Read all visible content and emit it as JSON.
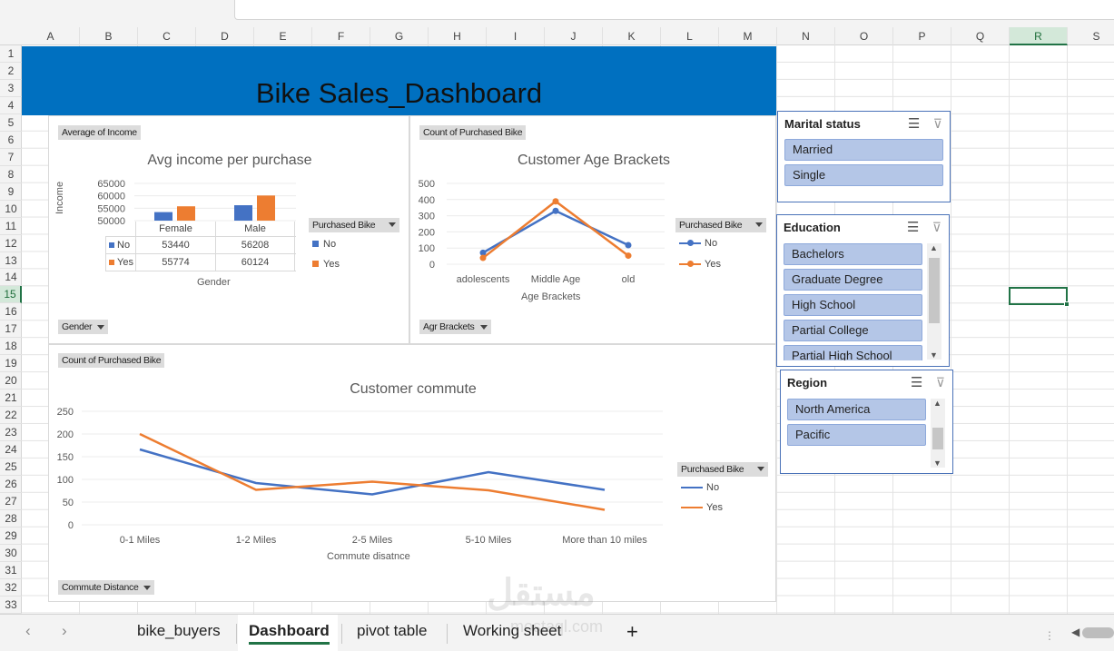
{
  "columns": [
    "A",
    "B",
    "C",
    "D",
    "E",
    "F",
    "G",
    "H",
    "I",
    "J",
    "K",
    "L",
    "M",
    "N",
    "O",
    "P",
    "Q",
    "R",
    "S"
  ],
  "rows": [
    "1",
    "2",
    "3",
    "4",
    "5",
    "6",
    "7",
    "8",
    "9",
    "10",
    "11",
    "12",
    "13",
    "14",
    "15",
    "16",
    "17",
    "18",
    "19",
    "20",
    "21",
    "22",
    "23",
    "24",
    "25",
    "26",
    "27",
    "28",
    "29",
    "30",
    "31",
    "32",
    "33"
  ],
  "selected_column": "R",
  "selected_row": "15",
  "dashboard_title": "Bike Sales_Dashboard",
  "chart1": {
    "field_value": "Average of Income",
    "field_axis": "Gender",
    "field_legend": "Purchased Bike",
    "title": "Avg income per purchase",
    "ylabel": "Income",
    "xlabel": "Gender",
    "ytick_labels": [
      "65000",
      "60000",
      "55000",
      "50000"
    ],
    "table_header": [
      "Female",
      "Male"
    ],
    "table_rows": [
      {
        "label": "No",
        "values": [
          "53440",
          "56208"
        ]
      },
      {
        "label": "Yes",
        "values": [
          "55774",
          "60124"
        ]
      }
    ],
    "legend": [
      "No",
      "Yes"
    ]
  },
  "chart2": {
    "field_value": "Count of Purchased Bike",
    "field_axis": "Agr Brackets",
    "field_legend": "Purchased Bike",
    "title": "Customer Age Brackets",
    "xlabel": "Age Brackets",
    "ytick_labels": [
      "500",
      "400",
      "300",
      "200",
      "100",
      "0"
    ],
    "legend": [
      "No",
      "Yes"
    ]
  },
  "chart3": {
    "field_value": "Count of Purchased Bike",
    "field_axis": "Commute Distance",
    "field_legend": "Purchased Bike",
    "title": "Customer commute",
    "xlabel": "Commute disatnce",
    "ytick_labels": [
      "250",
      "200",
      "150",
      "100",
      "50",
      "0"
    ],
    "legend": [
      "No",
      "Yes"
    ]
  },
  "chart_data": [
    {
      "type": "bar",
      "title": "Avg income per purchase",
      "xlabel": "Gender",
      "ylabel": "Income",
      "categories": [
        "Female",
        "Male"
      ],
      "series": [
        {
          "name": "No",
          "values": [
            53440,
            56208
          ]
        },
        {
          "name": "Yes",
          "values": [
            55774,
            60124
          ]
        }
      ],
      "ylim": [
        50000,
        65000
      ],
      "legend": "right"
    },
    {
      "type": "line",
      "title": "Customer Age Brackets",
      "xlabel": "Age Brackets",
      "categories": [
        "adolescents",
        "Middle Age",
        "old"
      ],
      "series": [
        {
          "name": "No",
          "values": [
            71,
            330,
            118
          ]
        },
        {
          "name": "Yes",
          "values": [
            39,
            389,
            53
          ]
        }
      ],
      "ylim": [
        0,
        500
      ],
      "legend": "right"
    },
    {
      "type": "line",
      "title": "Customer commute",
      "xlabel": "Commute disatnce",
      "categories": [
        "0-1 Miles",
        "1-2 Miles",
        "2-5 Miles",
        "5-10 Miles",
        "More than 10 miles"
      ],
      "series": [
        {
          "name": "No",
          "values": [
            166,
            92,
            67,
            116,
            77
          ]
        },
        {
          "name": "Yes",
          "values": [
            200,
            77,
            95,
            76,
            33
          ]
        }
      ],
      "ylim": [
        0,
        250
      ],
      "legend": "right"
    }
  ],
  "colors": {
    "no": "#4472c4",
    "yes": "#ed7d31",
    "banner": "#0070c0"
  },
  "slicers": {
    "marital": {
      "title": "Marital status",
      "items": [
        "Married",
        "Single"
      ]
    },
    "education": {
      "title": "Education",
      "items": [
        "Bachelors",
        "Graduate Degree",
        "High School",
        "Partial College",
        "Partial High School"
      ]
    },
    "region": {
      "title": "Region",
      "items": [
        "North America",
        "Pacific"
      ]
    }
  },
  "tabs": [
    "bike_buyers",
    "Dashboard",
    "pivot table",
    "Working sheet"
  ],
  "active_tab": "Dashboard",
  "add_sheet": "+"
}
